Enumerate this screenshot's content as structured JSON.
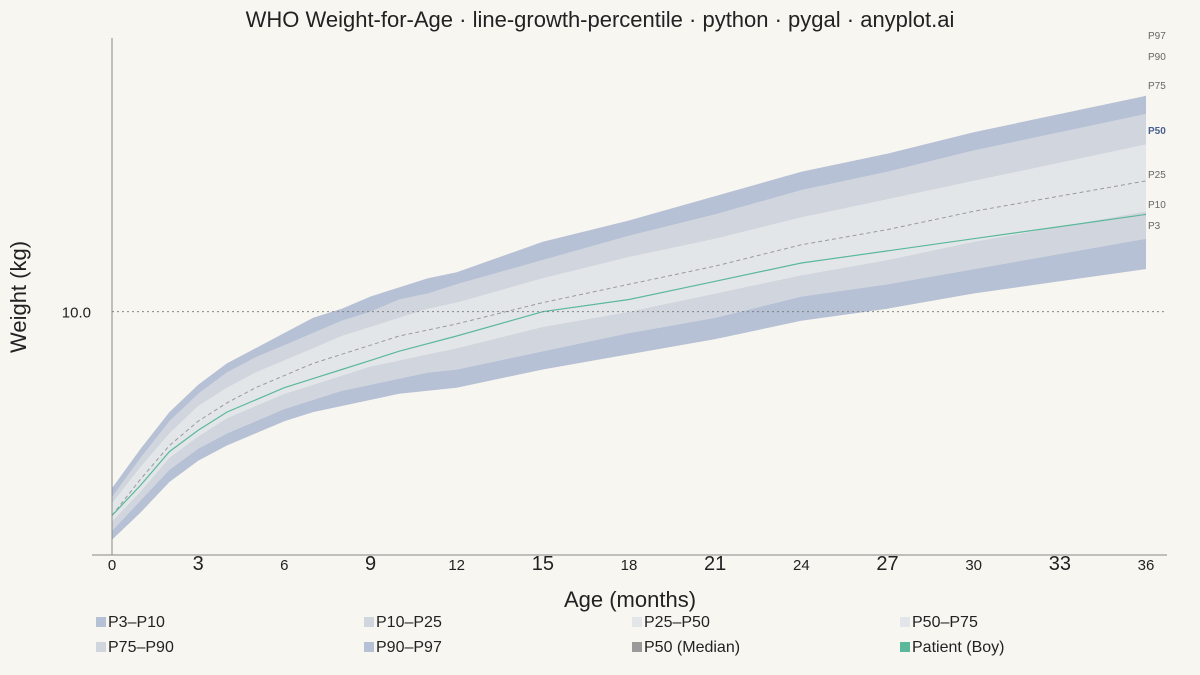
{
  "chart_data": {
    "type": "area",
    "title": "WHO Weight-for-Age · line-growth-percentile · python · pygal · anyplot.ai",
    "xlabel": "Age (months)",
    "ylabel": "Weight (kg)",
    "xlim": [
      0,
      36
    ],
    "ylim": [
      2.0,
      19.0
    ],
    "x_ticks_major": [
      3,
      9,
      15,
      21,
      27,
      33
    ],
    "x_ticks_minor": [
      0,
      6,
      12,
      18,
      24,
      30,
      36
    ],
    "y_ticks": [
      10.0
    ],
    "y_tick_labels": [
      "10.0"
    ],
    "grid": "dotted line at y = 10.0",
    "legend_position": "bottom",
    "ages": [
      0,
      1,
      2,
      3,
      4,
      5,
      6,
      7,
      8,
      9,
      10,
      11,
      12,
      15,
      18,
      21,
      24,
      27,
      30,
      33,
      36
    ],
    "percentiles": {
      "P3": [
        2.5,
        3.4,
        4.4,
        5.1,
        5.6,
        6.0,
        6.4,
        6.7,
        6.9,
        7.1,
        7.3,
        7.4,
        7.5,
        8.1,
        8.6,
        9.1,
        9.7,
        10.1,
        10.6,
        11.0,
        11.4
      ],
      "P10": [
        2.8,
        3.8,
        4.8,
        5.5,
        6.0,
        6.4,
        6.8,
        7.1,
        7.4,
        7.6,
        7.8,
        8.0,
        8.1,
        8.7,
        9.3,
        9.8,
        10.5,
        10.9,
        11.4,
        11.9,
        12.4
      ],
      "P25": [
        3.1,
        4.1,
        5.2,
        5.9,
        6.5,
        6.9,
        7.3,
        7.6,
        7.9,
        8.2,
        8.4,
        8.6,
        8.8,
        9.5,
        10.0,
        10.6,
        11.2,
        11.7,
        12.3,
        12.8,
        13.3
      ],
      "P50": [
        3.3,
        4.5,
        5.6,
        6.4,
        7.0,
        7.5,
        7.9,
        8.3,
        8.6,
        8.9,
        9.2,
        9.4,
        9.6,
        10.3,
        10.9,
        11.5,
        12.2,
        12.7,
        13.3,
        13.8,
        14.3
      ],
      "P75": [
        3.7,
        4.9,
        6.0,
        6.9,
        7.5,
        8.0,
        8.4,
        8.8,
        9.2,
        9.5,
        9.8,
        10.1,
        10.3,
        11.1,
        11.8,
        12.4,
        13.1,
        13.7,
        14.3,
        14.9,
        15.5
      ],
      "P90": [
        3.9,
        5.2,
        6.4,
        7.3,
        8.0,
        8.5,
        8.9,
        9.3,
        9.7,
        10.0,
        10.4,
        10.6,
        10.9,
        11.7,
        12.5,
        13.2,
        14.0,
        14.6,
        15.3,
        15.9,
        16.5
      ],
      "P97": [
        4.2,
        5.5,
        6.7,
        7.6,
        8.3,
        8.8,
        9.3,
        9.8,
        10.1,
        10.5,
        10.8,
        11.1,
        11.3,
        12.3,
        13.0,
        13.8,
        14.6,
        15.2,
        15.9,
        16.5,
        17.1
      ]
    },
    "patient": {
      "ages": [
        0,
        1,
        2,
        3,
        4,
        5,
        6,
        7,
        8,
        9,
        10,
        12,
        15,
        18,
        21,
        24,
        27,
        30,
        33,
        36
      ],
      "weights": [
        3.3,
        4.3,
        5.4,
        6.1,
        6.7,
        7.1,
        7.5,
        7.8,
        8.1,
        8.4,
        8.7,
        9.2,
        10.0,
        10.4,
        11.0,
        11.6,
        12.0,
        12.4,
        12.8,
        13.2
      ]
    },
    "right_labels": [
      "P97",
      "P90",
      "P75",
      "P50",
      "P25",
      "P10",
      "P3"
    ],
    "colors": {
      "band_outer": "#b7c1d5",
      "band_mid": "#d0d5de",
      "band_inner": "#e3e6e9",
      "median": "#9a9a9a",
      "patient": "#5bb89a",
      "median_label": "#4a6090"
    },
    "legend": [
      {
        "label": "P3–P10",
        "color": "#b7c1d5"
      },
      {
        "label": "P10–P25",
        "color": "#d0d5de"
      },
      {
        "label": "P25–P50",
        "color": "#e3e6e9"
      },
      {
        "label": "P50–P75",
        "color": "#e3e6e9"
      },
      {
        "label": "P75–P90",
        "color": "#d0d5de"
      },
      {
        "label": "P90–P97",
        "color": "#b7c1d5"
      },
      {
        "label": "P50 (Median)",
        "color": "#9a9a9a"
      },
      {
        "label": "Patient (Boy)",
        "color": "#5bb89a"
      }
    ]
  }
}
